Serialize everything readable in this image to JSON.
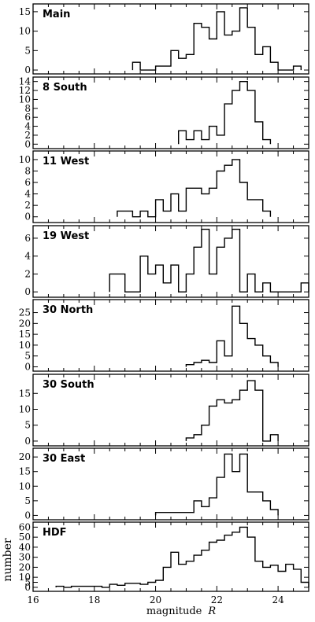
{
  "chart_data": {
    "type": "histogram",
    "x_axis": {
      "label": "magnitude",
      "label_symbol": "R",
      "lim": [
        16,
        25
      ],
      "ticks": [
        16,
        18,
        20,
        22,
        24
      ],
      "tick_labels": [
        "16",
        "18",
        "20",
        "22",
        "24"
      ]
    },
    "y_axis_label": "number",
    "bin_width": 0.25,
    "panels": [
      {
        "name": "Main",
        "ylim": [
          -1,
          17
        ],
        "yticks": [
          0,
          5,
          10,
          15
        ],
        "edges": [
          19.25,
          19.5,
          19.75,
          20.0,
          20.25,
          20.5,
          20.75,
          21.0,
          21.25,
          21.5,
          21.75,
          22.0,
          22.25,
          22.5,
          22.75,
          23.0,
          23.25,
          23.5,
          23.75,
          24.0,
          24.25,
          24.5,
          24.75
        ],
        "counts": [
          2,
          0,
          0,
          1,
          1,
          5,
          3,
          4,
          12,
          11,
          8,
          15,
          9,
          10,
          16,
          11,
          4,
          6,
          2,
          0,
          0,
          1
        ]
      },
      {
        "name": "8 South",
        "ylim": [
          -1,
          15
        ],
        "yticks": [
          0,
          2,
          4,
          6,
          8,
          10,
          12,
          14
        ],
        "edges": [
          20.75,
          21.0,
          21.25,
          21.5,
          21.75,
          22.0,
          22.25,
          22.5,
          22.75,
          23.0,
          23.25,
          23.5,
          23.75
        ],
        "counts": [
          3,
          1,
          3,
          1,
          4,
          2,
          9,
          12,
          14,
          12,
          5,
          1
        ]
      },
      {
        "name": "11 West",
        "ylim": [
          -1,
          11.5
        ],
        "yticks": [
          0,
          2,
          4,
          6,
          8,
          10
        ],
        "edges": [
          18.75,
          19.0,
          19.25,
          19.5,
          19.75,
          20.0,
          20.25,
          20.5,
          20.75,
          21.0,
          21.25,
          21.5,
          21.75,
          22.0,
          22.25,
          22.5,
          22.75,
          23.0,
          23.25,
          23.5,
          23.75
        ],
        "counts": [
          1,
          1,
          0,
          1,
          0,
          3,
          1,
          4,
          1,
          5,
          5,
          4,
          5,
          8,
          9,
          10,
          6,
          3,
          3,
          1
        ]
      },
      {
        "name": "19 West",
        "ylim": [
          -0.6,
          7.4
        ],
        "yticks": [
          0,
          2,
          4,
          6
        ],
        "edges": [
          18.5,
          18.75,
          19.0,
          19.25,
          19.5,
          19.75,
          20.0,
          20.25,
          20.5,
          20.75,
          21.0,
          21.25,
          21.5,
          21.75,
          22.0,
          22.25,
          22.5,
          22.75,
          23.0,
          23.25,
          23.5,
          23.75,
          24.0,
          24.25,
          24.5,
          24.75,
          25.0
        ],
        "counts": [
          2,
          2,
          0,
          0,
          4,
          2,
          3,
          1,
          3,
          0,
          2,
          5,
          7,
          2,
          5,
          6,
          7,
          0,
          2,
          0,
          1,
          0,
          0,
          0,
          0,
          1
        ]
      },
      {
        "name": "30 North",
        "ylim": [
          -2,
          31
        ],
        "yticks": [
          0,
          5,
          10,
          15,
          20,
          25
        ],
        "edges": [
          21.0,
          21.25,
          21.5,
          21.75,
          22.0,
          22.25,
          22.5,
          22.75,
          23.0,
          23.25,
          23.5,
          23.75,
          24.0
        ],
        "counts": [
          1,
          2,
          3,
          2,
          12,
          5,
          28,
          20,
          13,
          10,
          5,
          2
        ]
      },
      {
        "name": "30 South",
        "ylim": [
          -1.5,
          21
        ],
        "yticks": [
          0,
          5,
          10,
          15
        ],
        "edges": [
          21.0,
          21.25,
          21.5,
          21.75,
          22.0,
          22.25,
          22.5,
          22.75,
          23.0,
          23.25,
          23.5,
          23.75,
          24.0
        ],
        "counts": [
          1,
          2,
          5,
          11,
          13,
          12,
          13,
          16,
          19,
          16,
          0,
          2
        ]
      },
      {
        "name": "30 East",
        "ylim": [
          -1.5,
          23
        ],
        "yticks": [
          0,
          5,
          10,
          15,
          20
        ],
        "edges": [
          20.0,
          20.25,
          20.5,
          20.75,
          21.0,
          21.25,
          21.5,
          21.75,
          22.0,
          22.25,
          22.5,
          22.75,
          23.0,
          23.25,
          23.5,
          23.75,
          24.0
        ],
        "counts": [
          1,
          1,
          1,
          1,
          1,
          5,
          3,
          6,
          13,
          21,
          15,
          21,
          8,
          8,
          5,
          2
        ]
      },
      {
        "name": "HDF",
        "ylim": [
          -4,
          65
        ],
        "yticks": [
          0,
          5,
          10,
          20,
          30,
          40,
          50,
          60
        ],
        "edges": [
          16.75,
          17.0,
          17.25,
          17.5,
          17.75,
          18.0,
          18.25,
          18.5,
          18.75,
          19.0,
          19.25,
          19.5,
          19.75,
          20.0,
          20.25,
          20.5,
          20.75,
          21.0,
          21.25,
          21.5,
          21.75,
          22.0,
          22.25,
          22.5,
          22.75,
          23.0,
          23.25,
          23.5,
          23.75,
          24.0,
          24.25,
          24.5,
          24.75,
          25.0
        ],
        "counts": [
          1,
          0,
          1,
          1,
          1,
          1,
          0,
          3,
          2,
          4,
          4,
          3,
          5,
          7,
          20,
          35,
          23,
          26,
          32,
          37,
          45,
          47,
          52,
          55,
          60,
          50,
          26,
          20,
          22,
          16,
          23,
          18,
          5
        ]
      }
    ]
  }
}
